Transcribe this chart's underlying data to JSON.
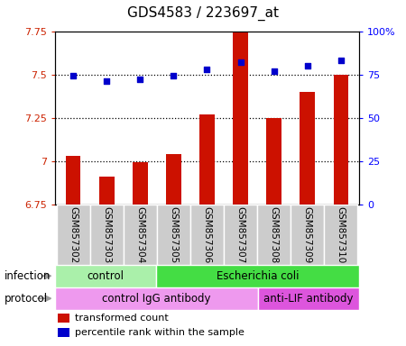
{
  "title": "GDS4583 / 223697_at",
  "samples": [
    "GSM857302",
    "GSM857303",
    "GSM857304",
    "GSM857305",
    "GSM857306",
    "GSM857307",
    "GSM857308",
    "GSM857309",
    "GSM857310"
  ],
  "bar_values": [
    7.03,
    6.91,
    6.99,
    7.04,
    7.27,
    7.84,
    7.25,
    7.4,
    7.5
  ],
  "dot_values": [
    74,
    71,
    72,
    74,
    78,
    82,
    77,
    80,
    83
  ],
  "ylim_left": [
    6.75,
    7.75
  ],
  "ylim_right": [
    0,
    100
  ],
  "yticks_left": [
    6.75,
    7.0,
    7.25,
    7.5,
    7.75
  ],
  "ytick_labels_left": [
    "6.75",
    "7",
    "7.25",
    "7.5",
    "7.75"
  ],
  "yticks_right": [
    0,
    25,
    50,
    75,
    100
  ],
  "ytick_labels_right": [
    "0",
    "25",
    "50",
    "75",
    "100%"
  ],
  "hlines": [
    7.0,
    7.25,
    7.5
  ],
  "bar_color": "#cc1100",
  "dot_color": "#0000cc",
  "bar_width": 0.45,
  "infection_groups": [
    {
      "label": "control",
      "start": 0,
      "end": 3,
      "color": "#aaf0aa"
    },
    {
      "label": "Escherichia coli",
      "start": 3,
      "end": 9,
      "color": "#44dd44"
    }
  ],
  "protocol_groups": [
    {
      "label": "control IgG antibody",
      "start": 0,
      "end": 6,
      "color": "#ee99ee"
    },
    {
      "label": "anti-LIF antibody",
      "start": 6,
      "end": 9,
      "color": "#dd55dd"
    }
  ],
  "legend_bar_label": "transformed count",
  "legend_dot_label": "percentile rank within the sample",
  "infection_label": "infection",
  "protocol_label": "protocol",
  "arrow_color": "#999999",
  "sample_bg_color": "#cccccc",
  "plot_bg_color": "#ffffff",
  "fig_bg_color": "#ffffff"
}
